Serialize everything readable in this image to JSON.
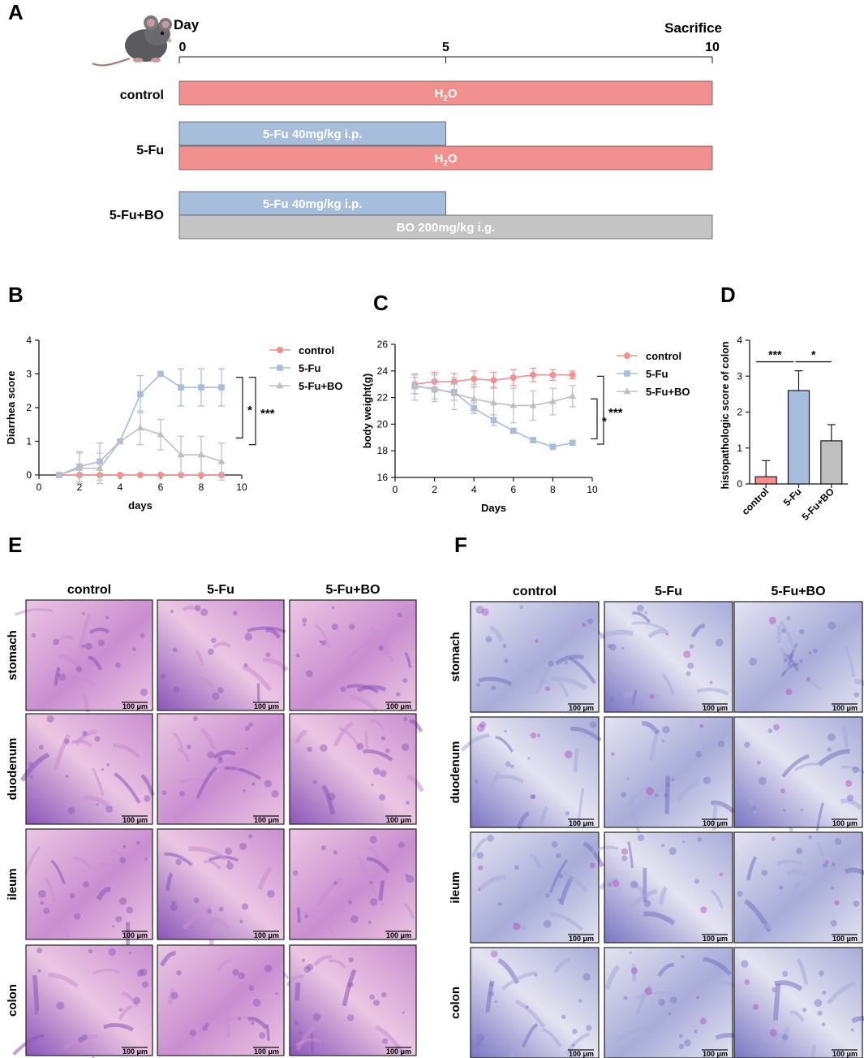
{
  "colors": {
    "control": "#F2908F",
    "fu": "#A6BEDC",
    "fubo": "#BFBFBF",
    "bo_bar": "#C4C4C4",
    "axis": "#1a1a1a",
    "arrow": "#e0302a",
    "he_light": "#EBC6E2",
    "he_mid": "#C98ED0",
    "he_dark": "#8A55B8",
    "pas_light": "#E4E3F1",
    "pas_mid": "#A8ACD8",
    "pas_dark": "#7A74C3",
    "pas_magenta": "#B44AB7"
  },
  "panelA": {
    "label": "A",
    "day_label": "Day",
    "sacrifice_label": "Sacrifice",
    "ticks": [
      "0",
      "5",
      "10"
    ],
    "tick_days": [
      0,
      5,
      10
    ],
    "mouse_icon": "mouse-icon",
    "groups": [
      {
        "name": "control",
        "bars": [
          {
            "label": "H",
            "sub": "2",
            "tail": "O",
            "start_day": 0,
            "end_day": 10,
            "color_key": "control"
          }
        ]
      },
      {
        "name": "5-Fu",
        "bars": [
          {
            "label": "5-Fu  40mg/kg i.p.",
            "sub": "",
            "tail": "",
            "start_day": 0,
            "end_day": 5,
            "color_key": "fu"
          },
          {
            "label": "H",
            "sub": "2",
            "tail": "O",
            "start_day": 0,
            "end_day": 10,
            "color_key": "control"
          }
        ]
      },
      {
        "name": "5-Fu+BO",
        "bars": [
          {
            "label": "5-Fu  40mg/kg i.p.",
            "sub": "",
            "tail": "",
            "start_day": 0,
            "end_day": 5,
            "color_key": "fu"
          },
          {
            "label": "BO  200mg/kg i.g.",
            "sub": "",
            "tail": "",
            "start_day": 0,
            "end_day": 10,
            "color_key": "bo_bar"
          }
        ]
      }
    ]
  },
  "chart_data": [
    {
      "panel": "B",
      "type": "line",
      "title": "",
      "xlabel": "days",
      "ylabel": "Diarrhea score",
      "xlim": [
        0,
        10
      ],
      "ylim": [
        0,
        4
      ],
      "xticks": [
        0,
        2,
        4,
        6,
        8,
        10
      ],
      "yticks": [
        0,
        1,
        2,
        3,
        4
      ],
      "x": [
        1,
        2,
        3,
        4,
        5,
        6,
        7,
        8,
        9
      ],
      "series": [
        {
          "name": "control",
          "marker": "circle",
          "color_key": "control",
          "values": [
            0,
            0,
            0,
            0,
            0,
            0,
            0,
            0,
            0
          ],
          "errors": [
            0,
            0,
            0,
            0,
            0,
            0,
            0,
            0,
            0
          ]
        },
        {
          "name": "5-Fu",
          "marker": "square",
          "color_key": "fu",
          "values": [
            0,
            0.25,
            0.4,
            1.0,
            2.4,
            3.0,
            2.6,
            2.6,
            2.6
          ],
          "errors": [
            0,
            0.45,
            0.55,
            0,
            0.55,
            0,
            0.55,
            0.55,
            0.55
          ]
        },
        {
          "name": "5-Fu+BO",
          "marker": "triangle",
          "color_key": "fubo",
          "values": [
            0,
            0.2,
            0.2,
            1.0,
            1.4,
            1.2,
            0.6,
            0.6,
            0.4
          ],
          "errors": [
            0,
            0.45,
            0.45,
            0,
            0.5,
            0.45,
            0.55,
            0.55,
            0.55
          ]
        }
      ],
      "significance": [
        {
          "label": "*",
          "from_value": 2.9,
          "to_value": 1.1
        },
        {
          "label": "***",
          "from_value": 2.9,
          "to_value": 0.9
        }
      ],
      "legend": "right"
    },
    {
      "panel": "C",
      "type": "line",
      "title": "",
      "xlabel": "Days",
      "ylabel": "body weight(g)",
      "xlim": [
        0,
        10
      ],
      "ylim": [
        16,
        26
      ],
      "xticks": [
        0,
        2,
        4,
        6,
        8,
        10
      ],
      "yticks": [
        16,
        18,
        20,
        22,
        24,
        26
      ],
      "x": [
        1,
        2,
        3,
        4,
        5,
        6,
        7,
        8,
        9
      ],
      "series": [
        {
          "name": "control",
          "marker": "circle",
          "color_key": "control",
          "values": [
            23.0,
            23.2,
            23.2,
            23.4,
            23.3,
            23.5,
            23.7,
            23.7,
            23.7
          ],
          "errors": [
            0.7,
            0.7,
            0.6,
            0.6,
            0.6,
            0.6,
            0.5,
            0.4,
            0.3
          ]
        },
        {
          "name": "5-Fu",
          "marker": "square",
          "color_key": "fu",
          "values": [
            22.9,
            22.6,
            22.4,
            21.2,
            20.3,
            19.5,
            18.8,
            18.3,
            18.6
          ],
          "errors": [
            0.6,
            0.7,
            0.6,
            0.4,
            0.4,
            0.2,
            0.2,
            0.2,
            0.1
          ]
        },
        {
          "name": "5-Fu+BO",
          "marker": "triangle",
          "color_key": "fubo",
          "values": [
            22.8,
            22.7,
            22.3,
            21.9,
            21.6,
            21.4,
            21.4,
            21.7,
            22.1
          ],
          "errors": [
            1.0,
            1.0,
            1.2,
            1.1,
            1.2,
            1.3,
            1.1,
            1.0,
            0.8
          ]
        }
      ],
      "significance": [
        {
          "label": "*",
          "from_value": 21.9,
          "to_value": 18.9
        },
        {
          "label": "***",
          "from_value": 23.6,
          "to_value": 18.5
        }
      ],
      "legend": "right"
    },
    {
      "panel": "D",
      "type": "bar",
      "title": "",
      "xlabel": "",
      "ylabel": "histopathologic score of colon",
      "ylim": [
        0,
        4
      ],
      "yticks": [
        0,
        1,
        2,
        3,
        4
      ],
      "categories": [
        "control",
        "5-Fu",
        "5-Fu+BO"
      ],
      "values": [
        0.2,
        2.6,
        1.2
      ],
      "errors": [
        0.45,
        0.55,
        0.45
      ],
      "color_keys": [
        "control",
        "fu",
        "fubo"
      ],
      "significance": [
        {
          "label": "***",
          "between": [
            0,
            1
          ],
          "value": 3.4
        },
        {
          "label": "*",
          "between": [
            1,
            2
          ],
          "value": 3.4
        }
      ]
    }
  ],
  "panelE": {
    "label": "E",
    "stain": "he",
    "columns": [
      "control",
      "5-Fu",
      "5-Fu+BO"
    ],
    "rows": [
      "stomach",
      "duodenum",
      "ileum",
      "colon"
    ],
    "scale": "100 μm"
  },
  "panelF": {
    "label": "F",
    "stain": "pas",
    "columns": [
      "control",
      "5-Fu",
      "5-Fu+BO"
    ],
    "rows": [
      "stomach",
      "duodenum",
      "ileum",
      "colon"
    ],
    "scale": "100 μm"
  }
}
